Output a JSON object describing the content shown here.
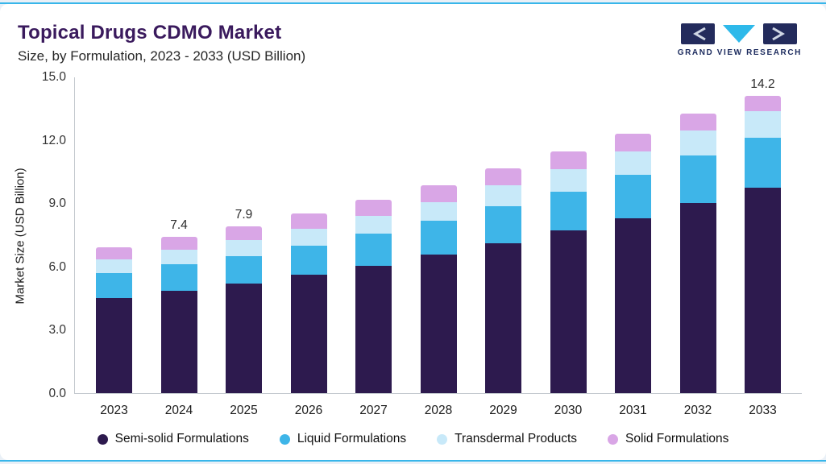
{
  "brand": {
    "name": "GRAND VIEW RESEARCH"
  },
  "chart_data": {
    "type": "bar",
    "stacked": true,
    "title": "Topical Drugs CDMO Market",
    "subtitle": "Size, by Formulation, 2023 - 2033 (USD Billion)",
    "ylabel": "Market Size (USD Billion)",
    "ylim": [
      0,
      15
    ],
    "yticks": [
      "0.0",
      "3.0",
      "6.0",
      "9.0",
      "12.0",
      "15.0"
    ],
    "grid": false,
    "legend_position": "bottom",
    "categories": [
      "2023",
      "2024",
      "2025",
      "2026",
      "2027",
      "2028",
      "2029",
      "2030",
      "2031",
      "2032",
      "2033"
    ],
    "bar_total_labels": [
      "",
      "7.4",
      "7.9",
      "",
      "",
      "",
      "",
      "",
      "",
      "",
      "14.2"
    ],
    "series": [
      {
        "name": "Semi-solid Formulations",
        "color": "#2d1a4e",
        "values": [
          4.5,
          4.85,
          5.2,
          5.6,
          6.05,
          6.55,
          7.1,
          7.7,
          8.3,
          9.0,
          9.8
        ]
      },
      {
        "name": "Liquid Formulations",
        "color": "#3eb5e8",
        "values": [
          1.2,
          1.25,
          1.3,
          1.4,
          1.5,
          1.6,
          1.75,
          1.85,
          2.05,
          2.25,
          2.4
        ]
      },
      {
        "name": "Transdermal Products",
        "color": "#c8e9f9",
        "values": [
          0.65,
          0.7,
          0.75,
          0.8,
          0.85,
          0.9,
          1.0,
          1.05,
          1.1,
          1.2,
          1.25
        ]
      },
      {
        "name": "Solid Formulations",
        "color": "#d9a6e6",
        "values": [
          0.55,
          0.6,
          0.65,
          0.7,
          0.75,
          0.8,
          0.8,
          0.85,
          0.85,
          0.8,
          0.75
        ]
      }
    ]
  }
}
